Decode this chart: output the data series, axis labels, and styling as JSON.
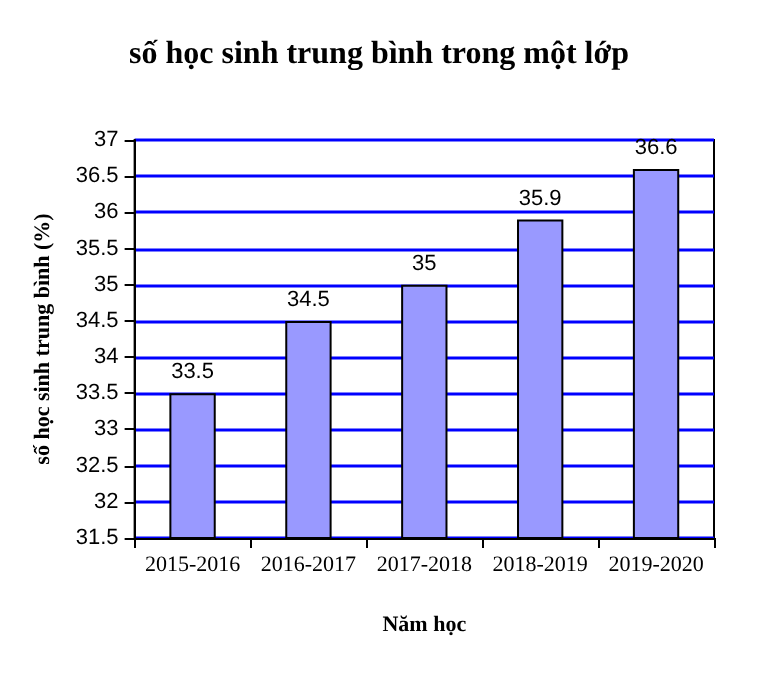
{
  "chart_data": {
    "type": "bar",
    "title": "số học sinh trung bình trong một lớp",
    "xlabel": "Năm học",
    "ylabel": "số học sinh trung bình (%)",
    "categories": [
      "2015-2016",
      "2016-2017",
      "2017-2018",
      "2018-2019",
      "2019-2020"
    ],
    "values": [
      33.5,
      34.5,
      35,
      35.9,
      36.6
    ],
    "color": "#9999ff",
    "ylim": [
      31.5,
      37
    ],
    "yticks": [
      31.5,
      32,
      32.5,
      33,
      33.5,
      34,
      34.5,
      35,
      35.5,
      36,
      36.5,
      37
    ],
    "grid": "y",
    "data_labels": true
  }
}
